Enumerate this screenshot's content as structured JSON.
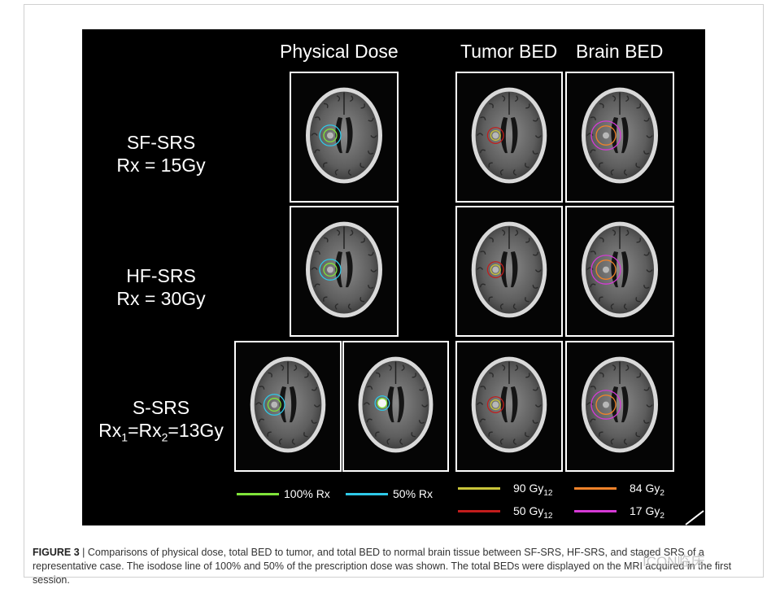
{
  "figure": {
    "column_headers": {
      "physical_dose": "Physical Dose",
      "tumor_bed": "Tumor BED",
      "brain_bed": "Brain BED"
    },
    "rows": {
      "sf": {
        "name": "SF-SRS",
        "rx": "Rx = 15Gy"
      },
      "hf": {
        "name": "HF-SRS",
        "rx": "Rx = 30Gy"
      },
      "s": {
        "name": "S-SRS",
        "rx_prefix": "Rx",
        "rx_sub1": "1",
        "rx_mid": "=Rx",
        "rx_sub2": "2",
        "rx_suffix": "=13Gy"
      }
    },
    "legend": {
      "rx100": {
        "label": "100% Rx",
        "color": "#7fe33a"
      },
      "rx50": {
        "label": "50% Rx",
        "color": "#2ec9e8"
      },
      "gy90": {
        "value": "90 Gy",
        "sub": "12",
        "color": "#c9c43a"
      },
      "gy50": {
        "value": "50 Gy",
        "sub": "12",
        "color": "#c21c1c"
      },
      "gy84": {
        "value": "84 Gy",
        "sub": "2",
        "color": "#f0822a"
      },
      "gy17": {
        "value": "17 Gy",
        "sub": "2",
        "color": "#d63ad6"
      }
    }
  },
  "caption": {
    "label": "FIGURE 3",
    "separator": " | ",
    "text": "Comparisons of physical dose, total BED to tumor, and total BED to normal brain tissue between SF-SRS, HF-SRS, and staged SRS of a representative case. The isodose line of 100% and 50% of the prescription dose was shown. The total BEDs were displayed on the MRI acquired in the first session."
  },
  "watermark": "ICON临床"
}
